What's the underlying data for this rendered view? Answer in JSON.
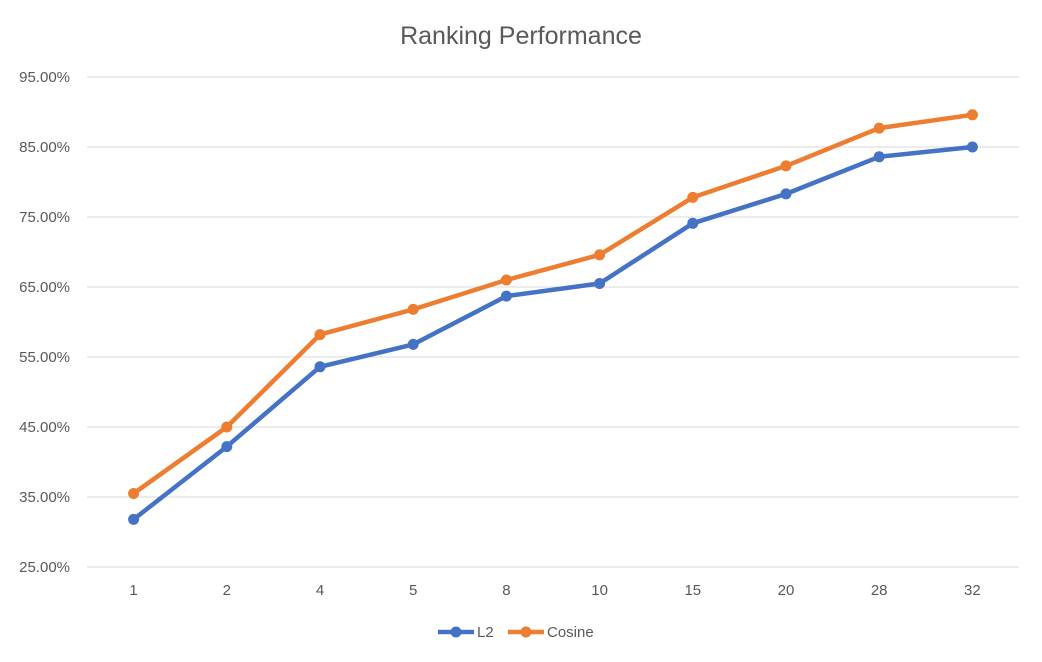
{
  "chart_data": {
    "type": "line",
    "title": "Ranking Performance",
    "xlabel": "",
    "ylabel": "",
    "categories": [
      "1",
      "2",
      "4",
      "5",
      "8",
      "10",
      "15",
      "20",
      "28",
      "32"
    ],
    "y_ticks": [
      "25.00%",
      "35.00%",
      "45.00%",
      "55.00%",
      "65.00%",
      "75.00%",
      "85.00%",
      "95.00%"
    ],
    "ylim": [
      25,
      95
    ],
    "grid": true,
    "legend_position": "bottom",
    "series": [
      {
        "name": "L2",
        "color": "#4472c4",
        "values": [
          31.8,
          42.2,
          53.6,
          56.8,
          63.7,
          65.5,
          74.1,
          78.3,
          83.6,
          85.0
        ]
      },
      {
        "name": "Cosine",
        "color": "#ed7d31",
        "values": [
          35.5,
          45.0,
          58.2,
          61.8,
          66.0,
          69.6,
          77.8,
          82.3,
          87.7,
          89.6
        ]
      }
    ]
  }
}
